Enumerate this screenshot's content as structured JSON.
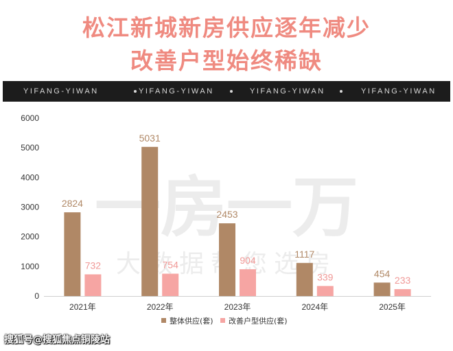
{
  "header": {
    "line1": "松江新城新房供应逐年减少",
    "line2": "改善户型始终稀缺"
  },
  "banner": {
    "items": [
      "YIFANG-YIWAN",
      "YIFANG-YIWAN",
      "YIFANG-YIWAN",
      "YIFANG-YIWAN"
    ]
  },
  "watermark": {
    "big": "一房一万",
    "small": "大数据帮您选房"
  },
  "footer": {
    "text": "搜狐号@搜狐焦点铜陵站"
  },
  "colors": {
    "series1": "#b08866",
    "series2": "#f6a5a3",
    "title": "#ef8a80",
    "series2_label": "#f09896"
  },
  "chart_data": {
    "type": "bar",
    "categories": [
      "2021年",
      "2022年",
      "2023年",
      "2024年",
      "2025年"
    ],
    "series": [
      {
        "name": "整体供应(套)",
        "values": [
          2824,
          5031,
          2453,
          1117,
          454
        ]
      },
      {
        "name": "改善户型供应(套)",
        "values": [
          732,
          754,
          904,
          339,
          233
        ]
      }
    ],
    "ylim": [
      0,
      6000
    ],
    "yticks": [
      0,
      1000,
      2000,
      3000,
      4000,
      5000,
      6000
    ],
    "xlabel": "",
    "ylabel": "",
    "legend_position": "bottom-center",
    "grid": false
  }
}
